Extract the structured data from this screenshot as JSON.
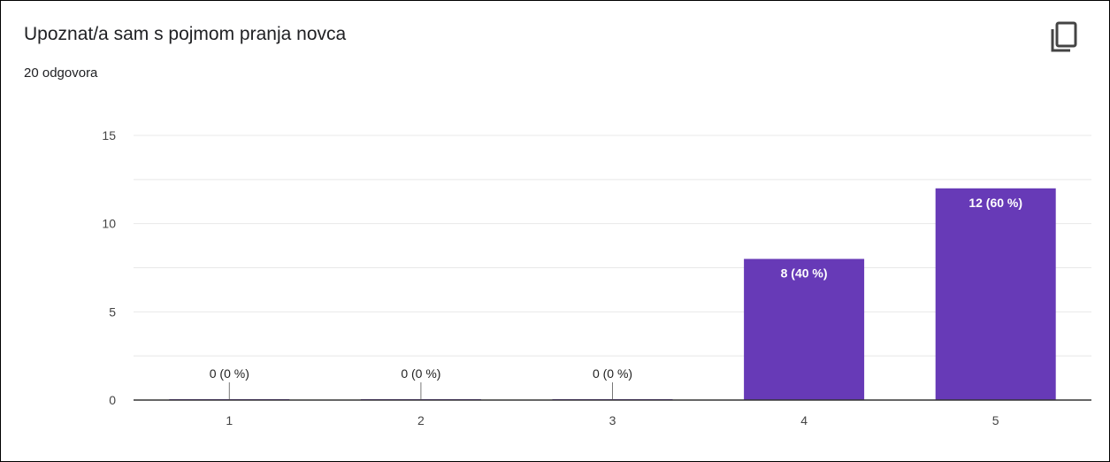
{
  "card": {
    "title": "Upoznat/a sam s pojmom pranja novca",
    "subtitle": "20 odgovora",
    "copy_icon": "copy-icon"
  },
  "colors": {
    "bar": "#673ab7",
    "grid": "#e8e8e8",
    "axis": "#333333",
    "text": "#202124"
  },
  "chart_data": {
    "type": "bar",
    "title": "Upoznat/a sam s pojmom pranja novca",
    "categories": [
      "1",
      "2",
      "3",
      "4",
      "5"
    ],
    "values": [
      0,
      0,
      0,
      8,
      12
    ],
    "data_labels": [
      "0 (0 %)",
      "0 (0 %)",
      "0 (0 %)",
      "8 (40 %)",
      "12 (60 %)"
    ],
    "yticks": [
      "0",
      "5",
      "10",
      "15"
    ],
    "ylim": [
      0,
      15
    ],
    "grid": true,
    "legend": "none"
  }
}
